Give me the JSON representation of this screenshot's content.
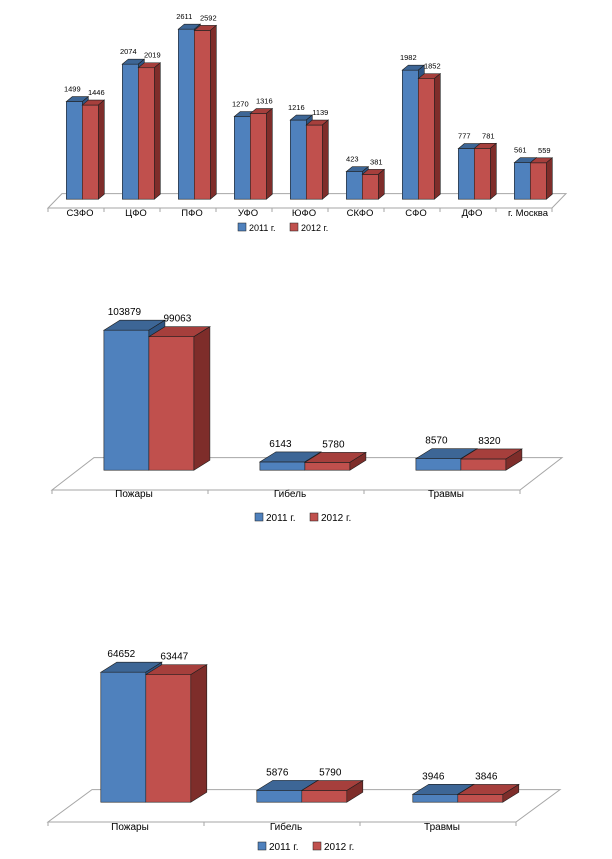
{
  "chart_data": [
    {
      "type": "bar",
      "categories": [
        "СЗФО",
        "ЦФО",
        "ПФО",
        "УФО",
        "ЮФО",
        "СКФО",
        "СФО",
        "ДФО",
        "г. Москва"
      ],
      "series": [
        {
          "name": "2011 г.",
          "values": [
            1499,
            2074,
            2611,
            1270,
            1216,
            423,
            1982,
            777,
            561
          ]
        },
        {
          "name": "2012 г.",
          "values": [
            1446,
            2019,
            2592,
            1316,
            1139,
            381,
            1852,
            781,
            559
          ]
        }
      ],
      "ylim": [
        0,
        2611
      ],
      "grid": false,
      "legend_position": "bottom-center",
      "three_d": true
    },
    {
      "type": "bar",
      "categories": [
        "Пожары",
        "Гибель",
        "Травмы"
      ],
      "series": [
        {
          "name": "2011 г.",
          "values": [
            103879,
            6143,
            8570
          ]
        },
        {
          "name": "2012 г.",
          "values": [
            99063,
            5780,
            8320
          ]
        }
      ],
      "ylim": [
        0,
        103879
      ],
      "grid": false,
      "legend_position": "bottom-center",
      "three_d": true
    },
    {
      "type": "bar",
      "categories": [
        "Пожары",
        "Гибель",
        "Травмы"
      ],
      "series": [
        {
          "name": "2011 г.",
          "values": [
            64652,
            5876,
            3946
          ]
        },
        {
          "name": "2012 г.",
          "values": [
            63447,
            5790,
            3846
          ]
        }
      ],
      "ylim": [
        0,
        64652
      ],
      "grid": false,
      "legend_position": "bottom-center",
      "three_d": true
    }
  ],
  "colors": {
    "series_2011": {
      "front": "#4f81bd",
      "top": "#3d6696",
      "side": "#2e5584"
    },
    "series_2012": {
      "front": "#c0504d",
      "top": "#a63f3c",
      "side": "#7e2d2a"
    },
    "floor": "#a6a6a6"
  }
}
